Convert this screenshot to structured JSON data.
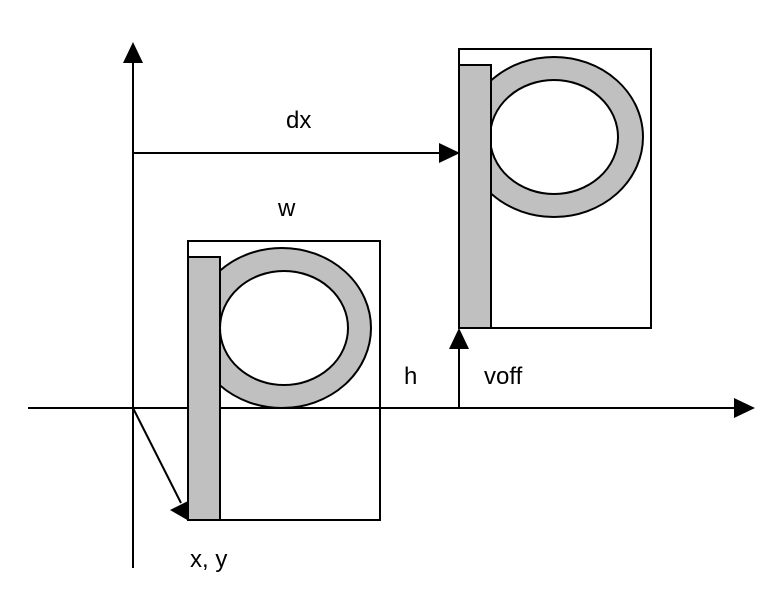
{
  "labels": {
    "dx": "dx",
    "w": "w",
    "h": "h",
    "voff": "voff",
    "xy": "x, y"
  },
  "colors": {
    "stroke": "#000000",
    "glyph_fill": "#c0c0c0",
    "background": "#ffffff"
  }
}
